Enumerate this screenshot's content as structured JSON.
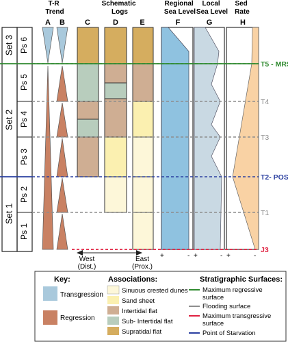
{
  "headers": {
    "tr_trend": "T-R\nTrend",
    "schematic_logs": "Schematic\nLogs",
    "regional_sea_level": "Regional\nSea Level",
    "local_sea_level": "Local\nSea Level",
    "sed_rate": "Sed\nRate"
  },
  "column_letters": [
    "A",
    "B",
    "C",
    "D",
    "E",
    "F",
    "G",
    "H"
  ],
  "sets": [
    "Set 3",
    "Set 2",
    "Set 1"
  ],
  "parasequences": [
    "Ps 6",
    "Ps 5",
    "Ps 4",
    "Ps 3",
    "Ps 2",
    "Ps 1"
  ],
  "surface_labels": {
    "t5": "T5 - MRS",
    "t4": "T4",
    "t3": "T3",
    "t2": "T2- POS",
    "t1": "T1",
    "j3": "J3"
  },
  "axis_signs": {
    "plus": "+",
    "minus": "-"
  },
  "direction": {
    "west": "West",
    "west_sub": "(Dist.)",
    "east": "East",
    "east_sub": "(Prox.)"
  },
  "key": {
    "title": "Key:",
    "transgression": "Transgression",
    "regression": "Regression"
  },
  "associations": {
    "title": "Associations:",
    "items": [
      "Sinuous crested dunes",
      "Sand sheet",
      "Intertidal flat",
      "Sub- Intertidal flat",
      "Supratidal flat"
    ]
  },
  "surfaces_key": {
    "title": "Stratigraphic Surfaces:",
    "items": [
      "Maximum regressive\nsurface",
      "Flooding surface",
      "Maximum transgressive\nsurface",
      "Point of Starvation"
    ]
  },
  "colors": {
    "transgression": "#a9c9dc",
    "regression": "#c98163",
    "sinuous_dunes": "#fdf7d9",
    "sand_sheet": "#fbf0b0",
    "intertidal": "#cfae93",
    "sub_intertidal": "#b8cdbd",
    "supratidal": "#d5ad5f",
    "regional_sea": "#8fc2e0",
    "local_sea": "#c9d9e3",
    "sed_rate": "#f9d2a4",
    "mrs": "#2f8a2f",
    "flooding": "#8d8d8d",
    "mts": "#e02040",
    "pos": "#2a3fa0"
  }
}
